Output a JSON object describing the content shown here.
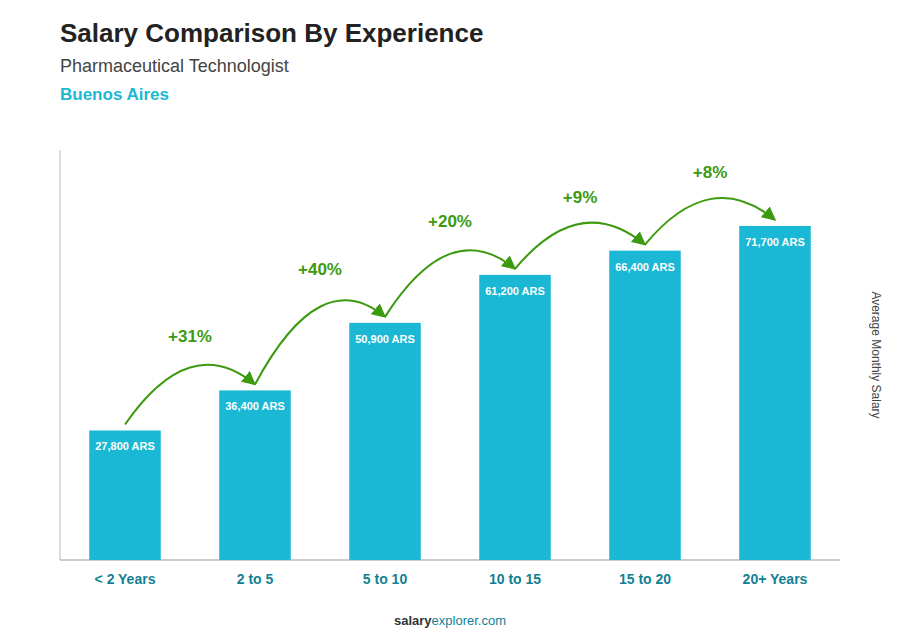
{
  "chart_data": {
    "type": "bar",
    "title": "Salary Comparison By Experience",
    "subtitle": "Pharmaceutical Technologist",
    "city": "Buenos Aires",
    "y_label": "Average Monthly Salary",
    "source": [
      "salary",
      "explorer.com"
    ],
    "categories": [
      "< 2 Years",
      "2 to 5",
      "5 to 10",
      "10 to 15",
      "15 to 20",
      "20+ Years"
    ],
    "values": [
      27800,
      36400,
      50900,
      61200,
      66400,
      71700
    ],
    "value_labels": [
      "27,800 ARS",
      "36,400 ARS",
      "50,900 ARS",
      "61,200 ARS",
      "66,400 ARS",
      "71,700 ARS"
    ],
    "annotations": [
      "+31%",
      "+40%",
      "+20%",
      "+9%",
      "+8%"
    ],
    "color": "#1ab8d4",
    "ylim": [
      0,
      88000
    ],
    "grid": false,
    "data_labels": true,
    "tick_labels": "x"
  }
}
